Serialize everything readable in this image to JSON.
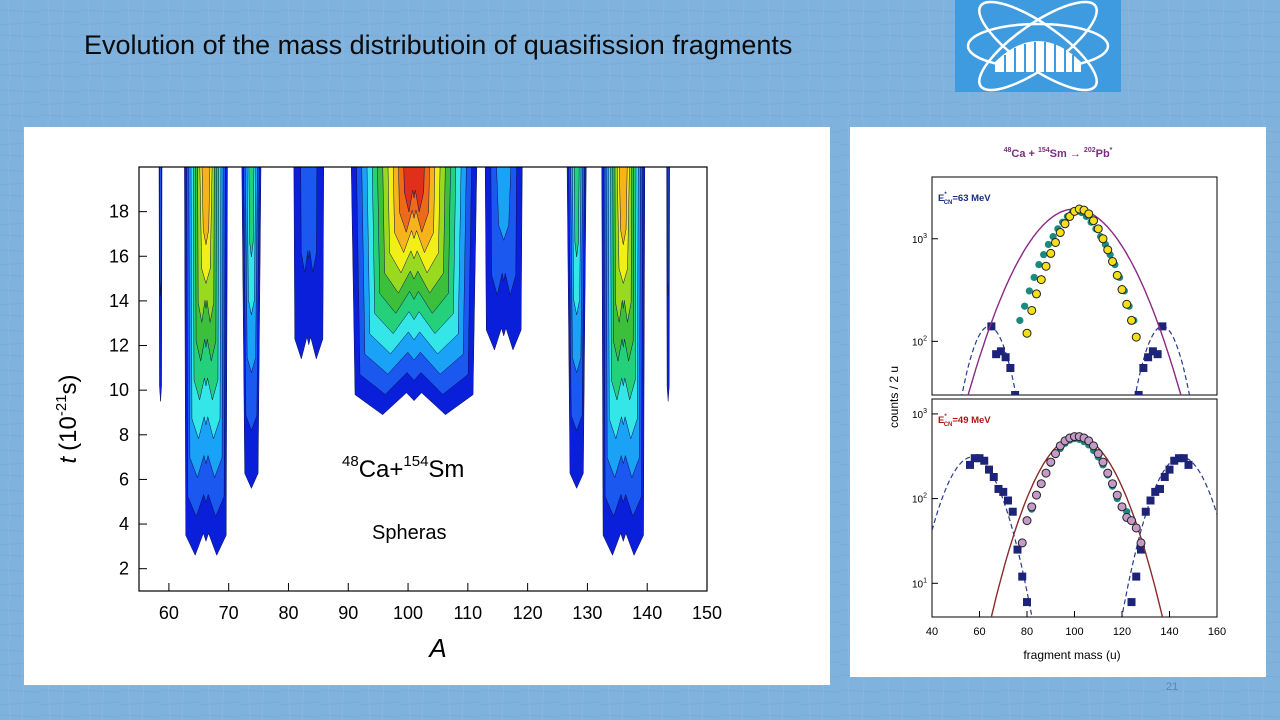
{
  "slide": {
    "title": "Evolution of the mass distributioin of quasifission fragments",
    "page_number": "21",
    "logo_icon": "institute-building-atom-logo"
  },
  "chart_data": [
    {
      "type": "heatmap",
      "subtype": "filled-contour",
      "reaction": {
        "projectile_mass": "48",
        "projectile": "Ca",
        "joiner": "+",
        "target_mass": "154",
        "target": "Sm"
      },
      "model_label": "Spheras",
      "xlabel": "A",
      "ylabel_prefix": "t",
      "ylabel_open": "(10",
      "ylabel_exp": "-21",
      "ylabel_unit": "s)",
      "xlim": [
        55,
        150
      ],
      "ylim": [
        1,
        20
      ],
      "xticks": [
        60,
        70,
        80,
        90,
        100,
        110,
        120,
        130,
        140,
        150
      ],
      "yticks": [
        2,
        4,
        6,
        8,
        10,
        12,
        14,
        16,
        18
      ],
      "colorscale": [
        "#0a1fd9",
        "#1a58ef",
        "#1aa2f7",
        "#35e6e8",
        "#25d07a",
        "#3cbf3a",
        "#99d91f",
        "#f2ee18",
        "#f6b41a",
        "#ec6a18",
        "#e0301a"
      ],
      "levels": 11,
      "peaks": [
        {
          "center": 58.6,
          "halfwidth": 0.25,
          "t_start": 9.5,
          "intensity": 2
        },
        {
          "center": 66.2,
          "halfwidth": 3.6,
          "t_start": 2.6,
          "intensity": 9
        },
        {
          "center": 73.8,
          "halfwidth": 1.6,
          "t_start": 5.6,
          "intensity": 5
        },
        {
          "center": 83.4,
          "halfwidth": 2.5,
          "t_start": 11.4,
          "intensity": 2
        },
        {
          "center": 101.0,
          "halfwidth": 10.5,
          "t_start": 8.9,
          "intensity": 11
        },
        {
          "center": 116.0,
          "halfwidth": 3.1,
          "t_start": 11.8,
          "intensity": 3
        },
        {
          "center": 128.2,
          "halfwidth": 1.6,
          "t_start": 5.6,
          "intensity": 5
        },
        {
          "center": 136.0,
          "halfwidth": 3.6,
          "t_start": 2.6,
          "intensity": 9
        },
        {
          "center": 143.5,
          "halfwidth": 0.25,
          "t_start": 9.5,
          "intensity": 2
        }
      ]
    },
    {
      "type": "scatter",
      "title": {
        "p_mass": "48",
        "p": "Ca",
        "plus": " + ",
        "t_mass": "154",
        "t": "Sm",
        "arrow": " → ",
        "cn_mass": "202",
        "cn": "Pb",
        "star": "*"
      },
      "xlabel": "fragment mass (u)",
      "ylabel": "counts / 2 u",
      "xlim": [
        40,
        160
      ],
      "xticks": [
        40,
        60,
        80,
        100,
        120,
        140,
        160
      ],
      "yscale": "log",
      "colors": {
        "title": "#7a2d7e",
        "label_blue": "#1a2d80",
        "label_red": "#b01515",
        "teal": "#1a8a80",
        "yellow": "#f5df1a",
        "pink": "#c49ac8",
        "square": "#1d2477",
        "curve_purple": "#8a2a86",
        "curve_brown": "#8b2a2a",
        "dash": "#2a3a8c"
      },
      "panels": [
        {
          "energy_label": {
            "pre": "E",
            "sup": "*",
            "sub": "CN",
            "post": "=63 MeV"
          },
          "ylim": [
            30,
            4000
          ],
          "ytick_labels": [
            {
              "base": "10",
              "exp": "3",
              "value": 1000
            },
            {
              "base": "10",
              "exp": "2",
              "value": 100
            }
          ],
          "teal_points": {
            "x": [
              77,
              79,
              81,
              83,
              85,
              87,
              89,
              91,
              93,
              95,
              97,
              99,
              101,
              103,
              105,
              107,
              109,
              111,
              113,
              115,
              117,
              119,
              121,
              123,
              125
            ],
            "y": [
              160,
              220,
              310,
              420,
              560,
              700,
              880,
              1050,
              1250,
              1450,
              1650,
              1800,
              1850,
              1800,
              1650,
              1450,
              1250,
              1050,
              880,
              700,
              560,
              420,
              310,
              220,
              160
            ]
          },
          "yellow_points": {
            "x": [
              80,
              82,
              84,
              86,
              88,
              90,
              92,
              94,
              96,
              98,
              100,
              102,
              104,
              106,
              108,
              110,
              112,
              114,
              116,
              118,
              120,
              122,
              124,
              126
            ],
            "y": [
              120,
              200,
              290,
              400,
              540,
              720,
              920,
              1150,
              1400,
              1650,
              1850,
              1950,
              1900,
              1750,
              1500,
              1250,
              1000,
              780,
              600,
              440,
              320,
              230,
              160,
              110
            ]
          },
          "squares": {
            "x": [
              65,
              67,
              69,
              71,
              73,
              75,
              127,
              129,
              131,
              133,
              135,
              137
            ],
            "y": [
              140,
              75,
              80,
              70,
              55,
              30,
              30,
              55,
              70,
              80,
              75,
              140
            ]
          },
          "solid_curve": {
            "center": 100,
            "sigma": 15.5,
            "peak": 1950
          },
          "dashed_curves": [
            {
              "center": 64,
              "sigma": 6.5,
              "peak": 140
            },
            {
              "center": 137,
              "sigma": 6.5,
              "peak": 140
            }
          ]
        },
        {
          "energy_label": {
            "pre": "E",
            "sup": "*",
            "sub": "CN",
            "post": "=49 MeV"
          },
          "ylim": [
            4,
            1500
          ],
          "ytick_labels": [
            {
              "base": "10",
              "exp": "3",
              "value": 1000
            },
            {
              "base": "10",
              "exp": "2",
              "value": 100
            },
            {
              "base": "10",
              "exp": "1",
              "value": 10
            }
          ],
          "teal_points": {
            "x": [
              82,
              84,
              86,
              88,
              90,
              92,
              94,
              96,
              98,
              100,
              102,
              104,
              106,
              108,
              110,
              112,
              114,
              116,
              118,
              120,
              122
            ],
            "y": [
              75,
              110,
              150,
              200,
              260,
              330,
              390,
              450,
              490,
              510,
              500,
              470,
              430,
              370,
              310,
              250,
              190,
              140,
              100,
              80,
              70
            ]
          },
          "pink_points": {
            "x": [
              78,
              80,
              82,
              84,
              86,
              88,
              90,
              92,
              94,
              96,
              98,
              100,
              102,
              104,
              106,
              108,
              110,
              112,
              114,
              116,
              118,
              120,
              122,
              124,
              126,
              128
            ],
            "y": [
              30,
              55,
              80,
              110,
              150,
              200,
              270,
              340,
              420,
              480,
              520,
              540,
              540,
              520,
              480,
              420,
              340,
              270,
              200,
              150,
              110,
              80,
              60,
              55,
              45,
              30
            ]
          },
          "squares": {
            "x": [
              56,
              58,
              60,
              62,
              64,
              66,
              68,
              70,
              72,
              74,
              76,
              78,
              80,
              124,
              126,
              128,
              130,
              132,
              134,
              136,
              138,
              140,
              142,
              144,
              146,
              148
            ],
            "y": [
              250,
              300,
              300,
              280,
              220,
              180,
              130,
              120,
              95,
              70,
              25,
              12,
              6,
              6,
              12,
              25,
              70,
              95,
              120,
              130,
              180,
              220,
              280,
              300,
              300,
              250
            ]
          },
          "solid_curve": {
            "center": 101,
            "sigma": 11.5,
            "peak": 540
          },
          "dashed_curves": [
            {
              "center": 57,
              "sigma": 8.5,
              "peak": 310
            },
            {
              "center": 145,
              "sigma": 8.5,
              "peak": 310
            }
          ]
        }
      ]
    }
  ]
}
